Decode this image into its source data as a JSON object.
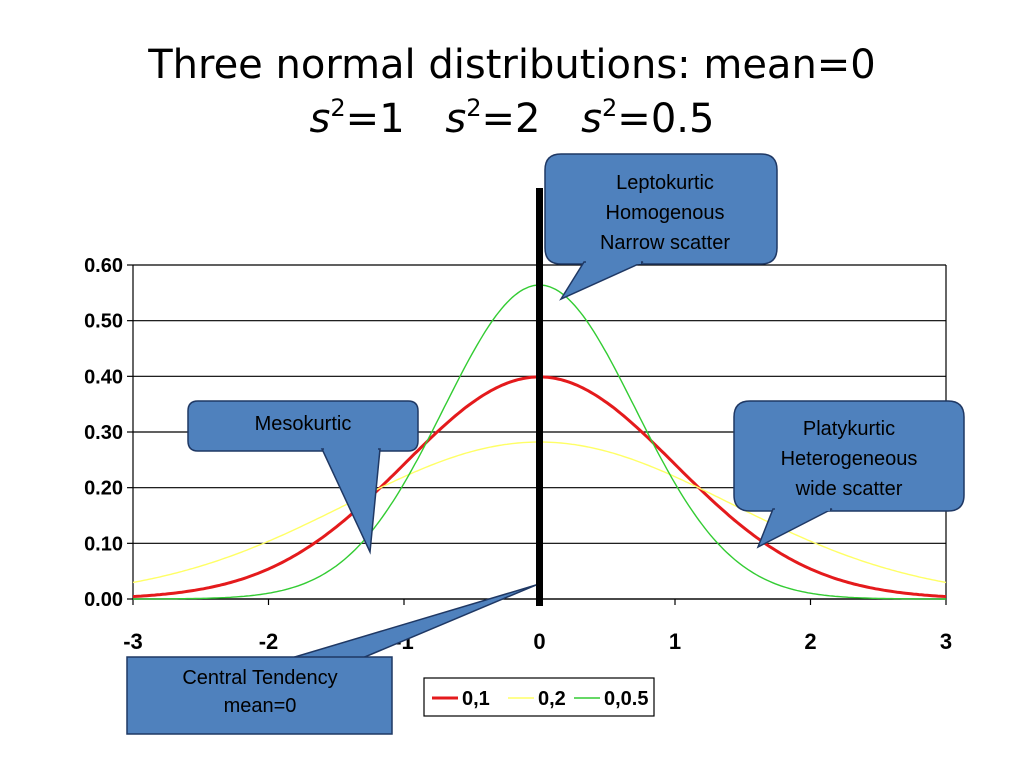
{
  "slide": {
    "title_line1": "Three normal distributions: mean=0",
    "variances": [
      {
        "symbol": "s",
        "exponent": "2",
        "value_text": "=1"
      },
      {
        "symbol": "s",
        "exponent": "2",
        "value_text": "=2"
      },
      {
        "symbol": "s",
        "exponent": "2",
        "value_text": "=0.5"
      }
    ]
  },
  "callouts": {
    "leptokurtic": [
      "Leptokurtic",
      "Homogenous",
      "Narrow scatter"
    ],
    "mesokurtic": [
      "Mesokurtic"
    ],
    "platykurtic": [
      "Platykurtic",
      "Heterogeneous",
      "wide scatter"
    ],
    "central": [
      "Central Tendency",
      "mean=0"
    ]
  },
  "colors": {
    "callout_fill": "#4f81bd",
    "callout_stroke": "#1f3864",
    "series_0_1": "#e41a1c",
    "series_0_2": "#ffff66",
    "series_0_0_5": "#33cc33",
    "mean_line": "#000000"
  },
  "chart_data": {
    "type": "line",
    "xlim": [
      -3,
      3
    ],
    "ylim": [
      0,
      0.6
    ],
    "xticks": [
      "-3",
      "-2",
      "-1",
      "0",
      "1",
      "2",
      "3"
    ],
    "xtick_values": [
      -3,
      -2,
      -1,
      0,
      1,
      2,
      3
    ],
    "yticks": [
      "0.00",
      "0.10",
      "0.20",
      "0.30",
      "0.40",
      "0.50",
      "0.60"
    ],
    "ytick_values": [
      0,
      0.1,
      0.2,
      0.3,
      0.4,
      0.5,
      0.6
    ],
    "grid_y": true,
    "legend_position": "bottom",
    "mean_line_x": 0,
    "x": [
      -3.0,
      -2.5,
      -2.0,
      -1.5,
      -1.25,
      -1.0,
      -0.75,
      -0.5,
      -0.25,
      0.0,
      0.25,
      0.5,
      0.75,
      1.0,
      1.25,
      1.5,
      2.0,
      2.5,
      3.0
    ],
    "series": [
      {
        "name": "0,1",
        "values": [
          0.004,
          0.018,
          0.054,
          0.13,
          0.183,
          0.242,
          0.301,
          0.352,
          0.387,
          0.399,
          0.387,
          0.352,
          0.301,
          0.242,
          0.183,
          0.13,
          0.054,
          0.018,
          0.004
        ]
      },
      {
        "name": "0,2",
        "values": [
          0.03,
          0.059,
          0.104,
          0.161,
          0.191,
          0.22,
          0.245,
          0.265,
          0.278,
          0.282,
          0.278,
          0.265,
          0.245,
          0.22,
          0.191,
          0.161,
          0.104,
          0.059,
          0.03
        ]
      },
      {
        "name": "0,0.5",
        "values": [
          0.0,
          0.002,
          0.01,
          0.056,
          0.119,
          0.208,
          0.257,
          0.439,
          0.531,
          0.564,
          0.531,
          0.439,
          0.257,
          0.208,
          0.119,
          0.056,
          0.01,
          0.002,
          0.0
        ]
      }
    ]
  }
}
